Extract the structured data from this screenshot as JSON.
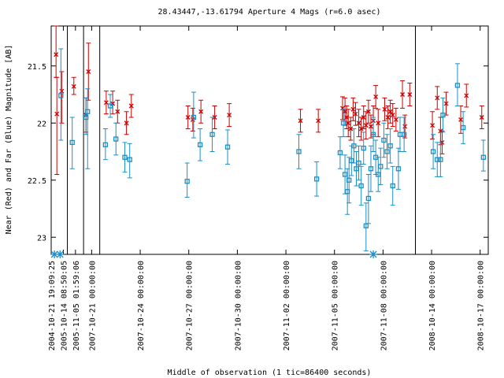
{
  "chart_data": {
    "type": "scatter",
    "title": "28.43447,-13.61794   Aperture 4 Mags (r=6.0 asec)",
    "xlabel": "Middle of observation (1 tic=86400 seconds)",
    "ylabel": "Near (Red) and Far (Blue) Magnitude [AB]",
    "y_inverted": true,
    "ylim": [
      23.15,
      21.15
    ],
    "y_ticks": [
      "21.5",
      "22",
      "22.5",
      "23"
    ],
    "y_tick_values": [
      21.5,
      22.0,
      22.5,
      23.0
    ],
    "x_ticks": [
      "2004-10-21 19:09:25",
      "2005-10-14 08:50:05",
      "2005-11-05 01:59:06",
      "2007-10-21 00:00:00",
      "2007-10-24 00:00:00",
      "2007-10-27 00:00:00",
      "2007-10-30 00:00:00",
      "2007-11-02 00:00:00",
      "2007-11-05 00:00:00",
      "2007-11-08 00:00:00",
      "2008-10-14 00:00:00",
      "2008-10-17 00:00:00"
    ],
    "x_tick_positions": [
      0,
      0.75,
      1.5,
      2.5,
      5.5,
      8.5,
      11.5,
      14.5,
      17.5,
      20.5,
      23.5,
      26.5
    ],
    "segment_breaks": [
      1,
      2,
      3,
      22.5
    ],
    "xlim": [
      0,
      27
    ],
    "bottom_markers_x": [
      0.2,
      0.55,
      19.9
    ],
    "series": [
      {
        "color": "#cc0000",
        "marker": "x",
        "points": [
          {
            "x": 0.3,
            "y": 21.4,
            "lo": 21.15,
            "hi": 21.6
          },
          {
            "x": 0.35,
            "y": 21.92,
            "lo": 21.6,
            "hi": 22.45
          },
          {
            "x": 0.65,
            "y": 21.72,
            "lo": 21.55,
            "hi": 22.0
          },
          {
            "x": 1.4,
            "y": 21.68,
            "lo": 21.6,
            "hi": 21.75
          },
          {
            "x": 2.15,
            "y": 21.93,
            "lo": 21.78,
            "hi": 22.08
          },
          {
            "x": 2.3,
            "y": 21.55,
            "lo": 21.3,
            "hi": 21.8
          },
          {
            "x": 3.4,
            "y": 21.82,
            "lo": 21.72,
            "hi": 21.92
          },
          {
            "x": 3.8,
            "y": 21.83,
            "lo": 21.72,
            "hi": 21.92
          },
          {
            "x": 4.1,
            "y": 21.9,
            "lo": 21.8,
            "hi": 22.0
          },
          {
            "x": 4.65,
            "y": 22.0,
            "lo": 21.9,
            "hi": 22.1
          },
          {
            "x": 4.95,
            "y": 21.85,
            "lo": 21.75,
            "hi": 21.95
          },
          {
            "x": 8.45,
            "y": 21.95,
            "lo": 21.85,
            "hi": 22.05
          },
          {
            "x": 8.75,
            "y": 21.97,
            "lo": 21.87,
            "hi": 22.07
          },
          {
            "x": 9.25,
            "y": 21.9,
            "lo": 21.8,
            "hi": 22.0
          },
          {
            "x": 10.1,
            "y": 21.95,
            "lo": 21.85,
            "hi": 22.05
          },
          {
            "x": 11.0,
            "y": 21.93,
            "lo": 21.83,
            "hi": 22.03
          },
          {
            "x": 15.4,
            "y": 21.98,
            "lo": 21.88,
            "hi": 22.08
          },
          {
            "x": 16.5,
            "y": 21.98,
            "lo": 21.88,
            "hi": 22.08
          },
          {
            "x": 18.0,
            "y": 21.87,
            "lo": 21.77,
            "hi": 21.97
          },
          {
            "x": 18.15,
            "y": 21.9,
            "lo": 21.78,
            "hi": 22.02
          },
          {
            "x": 18.25,
            "y": 21.95,
            "lo": 21.85,
            "hi": 22.05
          },
          {
            "x": 18.35,
            "y": 22.0,
            "lo": 21.88,
            "hi": 22.12
          },
          {
            "x": 18.5,
            "y": 22.05,
            "lo": 21.95,
            "hi": 22.15
          },
          {
            "x": 18.65,
            "y": 21.88,
            "lo": 21.78,
            "hi": 21.98
          },
          {
            "x": 18.8,
            "y": 21.92,
            "lo": 21.82,
            "hi": 22.02
          },
          {
            "x": 19.0,
            "y": 22.0,
            "lo": 21.88,
            "hi": 22.12
          },
          {
            "x": 19.15,
            "y": 22.05,
            "lo": 21.95,
            "hi": 22.15
          },
          {
            "x": 19.3,
            "y": 21.95,
            "lo": 21.85,
            "hi": 22.05
          },
          {
            "x": 19.45,
            "y": 22.02,
            "lo": 21.9,
            "hi": 22.14
          },
          {
            "x": 19.6,
            "y": 21.9,
            "lo": 21.8,
            "hi": 22.0
          },
          {
            "x": 19.75,
            "y": 22.03,
            "lo": 21.93,
            "hi": 22.13
          },
          {
            "x": 19.9,
            "y": 21.98,
            "lo": 21.85,
            "hi": 22.1
          },
          {
            "x": 20.05,
            "y": 21.77,
            "lo": 21.67,
            "hi": 21.87
          },
          {
            "x": 20.2,
            "y": 22.0,
            "lo": 21.88,
            "hi": 22.12
          },
          {
            "x": 20.6,
            "y": 21.88,
            "lo": 21.78,
            "hi": 21.98
          },
          {
            "x": 20.8,
            "y": 21.95,
            "lo": 21.85,
            "hi": 22.05
          },
          {
            "x": 20.95,
            "y": 21.9,
            "lo": 21.8,
            "hi": 22.0
          },
          {
            "x": 21.1,
            "y": 21.93,
            "lo": 21.83,
            "hi": 22.03
          },
          {
            "x": 21.3,
            "y": 21.97,
            "lo": 21.87,
            "hi": 22.07
          },
          {
            "x": 21.7,
            "y": 21.75,
            "lo": 21.63,
            "hi": 21.87
          },
          {
            "x": 21.85,
            "y": 22.03,
            "lo": 21.93,
            "hi": 22.13
          },
          {
            "x": 22.15,
            "y": 21.75,
            "lo": 21.65,
            "hi": 21.85
          },
          {
            "x": 23.55,
            "y": 22.02,
            "lo": 21.9,
            "hi": 22.14
          },
          {
            "x": 23.85,
            "y": 21.78,
            "lo": 21.68,
            "hi": 21.88
          },
          {
            "x": 24.05,
            "y": 22.07,
            "lo": 21.95,
            "hi": 22.19
          },
          {
            "x": 24.15,
            "y": 22.17,
            "lo": 22.07,
            "hi": 22.27
          },
          {
            "x": 24.4,
            "y": 21.83,
            "lo": 21.73,
            "hi": 21.93
          },
          {
            "x": 25.3,
            "y": 21.97,
            "lo": 21.85,
            "hi": 22.09
          },
          {
            "x": 25.65,
            "y": 21.76,
            "lo": 21.66,
            "hi": 21.86
          },
          {
            "x": 26.6,
            "y": 21.95,
            "lo": 21.85,
            "hi": 22.05
          }
        ]
      },
      {
        "color": "#1a8fc8",
        "marker": "square",
        "points": [
          {
            "x": 0.6,
            "y": 21.76,
            "lo": 21.35,
            "hi": 22.15
          },
          {
            "x": 1.3,
            "y": 22.17,
            "lo": 21.95,
            "hi": 22.4
          },
          {
            "x": 2.15,
            "y": 21.95,
            "lo": 21.78,
            "hi": 22.1
          },
          {
            "x": 2.25,
            "y": 21.9,
            "lo": 21.7,
            "hi": 22.4
          },
          {
            "x": 3.35,
            "y": 22.19,
            "lo": 22.05,
            "hi": 22.32
          },
          {
            "x": 3.65,
            "y": 21.85,
            "lo": 21.75,
            "hi": 21.95
          },
          {
            "x": 4.0,
            "y": 22.14,
            "lo": 22.0,
            "hi": 22.28
          },
          {
            "x": 4.55,
            "y": 22.3,
            "lo": 22.17,
            "hi": 22.43
          },
          {
            "x": 4.85,
            "y": 22.32,
            "lo": 22.18,
            "hi": 22.48
          },
          {
            "x": 8.4,
            "y": 22.51,
            "lo": 22.35,
            "hi": 22.65
          },
          {
            "x": 8.8,
            "y": 21.95,
            "lo": 21.73,
            "hi": 22.13
          },
          {
            "x": 9.2,
            "y": 22.19,
            "lo": 22.05,
            "hi": 22.33
          },
          {
            "x": 9.95,
            "y": 22.1,
            "lo": 21.95,
            "hi": 22.25
          },
          {
            "x": 10.9,
            "y": 22.21,
            "lo": 22.06,
            "hi": 22.36
          },
          {
            "x": 15.3,
            "y": 22.25,
            "lo": 22.1,
            "hi": 22.4
          },
          {
            "x": 16.4,
            "y": 22.49,
            "lo": 22.34,
            "hi": 22.64
          },
          {
            "x": 17.85,
            "y": 22.26,
            "lo": 22.12,
            "hi": 22.4
          },
          {
            "x": 18.05,
            "y": 22.0,
            "lo": 21.88,
            "hi": 22.12
          },
          {
            "x": 18.15,
            "y": 22.45,
            "lo": 22.28,
            "hi": 22.62
          },
          {
            "x": 18.3,
            "y": 22.6,
            "lo": 22.4,
            "hi": 22.8
          },
          {
            "x": 18.4,
            "y": 22.5,
            "lo": 22.3,
            "hi": 22.7
          },
          {
            "x": 18.55,
            "y": 22.33,
            "lo": 22.2,
            "hi": 22.46
          },
          {
            "x": 18.7,
            "y": 22.2,
            "lo": 22.05,
            "hi": 22.35
          },
          {
            "x": 18.85,
            "y": 22.4,
            "lo": 22.25,
            "hi": 22.55
          },
          {
            "x": 19.0,
            "y": 22.35,
            "lo": 22.2,
            "hi": 22.5
          },
          {
            "x": 19.15,
            "y": 22.55,
            "lo": 22.38,
            "hi": 22.72
          },
          {
            "x": 19.3,
            "y": 22.22,
            "lo": 22.08,
            "hi": 22.36
          },
          {
            "x": 19.45,
            "y": 22.9,
            "lo": 22.7,
            "hi": 23.12
          },
          {
            "x": 19.6,
            "y": 22.66,
            "lo": 22.45,
            "hi": 22.88
          },
          {
            "x": 19.75,
            "y": 22.4,
            "lo": 22.2,
            "hi": 22.6
          },
          {
            "x": 19.9,
            "y": 22.1,
            "lo": 21.95,
            "hi": 22.25
          },
          {
            "x": 20.05,
            "y": 22.3,
            "lo": 22.15,
            "hi": 22.45
          },
          {
            "x": 20.2,
            "y": 22.45,
            "lo": 22.3,
            "hi": 22.6
          },
          {
            "x": 20.35,
            "y": 22.38,
            "lo": 22.22,
            "hi": 22.54
          },
          {
            "x": 20.55,
            "y": 22.15,
            "lo": 22.0,
            "hi": 22.3
          },
          {
            "x": 20.75,
            "y": 22.25,
            "lo": 22.1,
            "hi": 22.4
          },
          {
            "x": 20.95,
            "y": 22.2,
            "lo": 22.05,
            "hi": 22.35
          },
          {
            "x": 21.1,
            "y": 22.55,
            "lo": 22.38,
            "hi": 22.72
          },
          {
            "x": 21.45,
            "y": 22.4,
            "lo": 22.22,
            "hi": 22.58
          },
          {
            "x": 21.55,
            "y": 22.1,
            "lo": 21.95,
            "hi": 22.25
          },
          {
            "x": 21.8,
            "y": 22.1,
            "lo": 21.95,
            "hi": 22.25
          },
          {
            "x": 23.6,
            "y": 22.25,
            "lo": 22.1,
            "hi": 22.4
          },
          {
            "x": 23.85,
            "y": 22.32,
            "lo": 22.17,
            "hi": 22.47
          },
          {
            "x": 24.05,
            "y": 22.32,
            "lo": 22.17,
            "hi": 22.47
          },
          {
            "x": 24.2,
            "y": 21.93,
            "lo": 21.78,
            "hi": 22.08
          },
          {
            "x": 25.1,
            "y": 21.67,
            "lo": 21.48,
            "hi": 21.85
          },
          {
            "x": 25.45,
            "y": 22.04,
            "lo": 21.9,
            "hi": 22.18
          },
          {
            "x": 26.7,
            "y": 22.3,
            "lo": 22.15,
            "hi": 22.42
          }
        ]
      }
    ]
  }
}
